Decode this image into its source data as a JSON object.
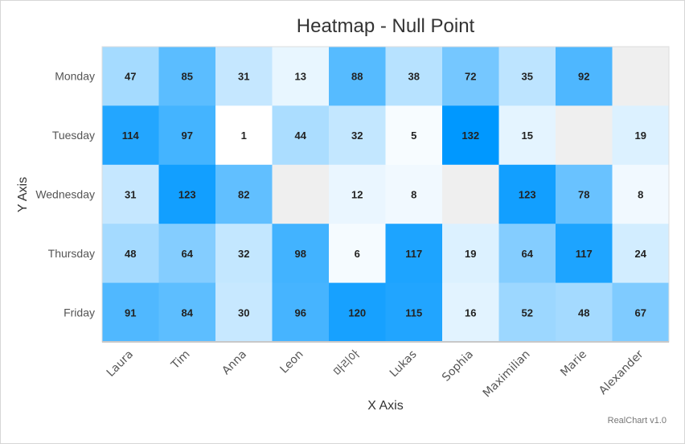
{
  "credits": "RealChart v1.0",
  "chart_data": {
    "type": "heatmap",
    "title": "Heatmap - Null Point",
    "xlabel": "X Axis",
    "ylabel": "Y Axis",
    "x_categories": [
      "Laura",
      "Tim",
      "Anna",
      "Leon",
      "마리아",
      "Lukas",
      "Sophia",
      "Maximilian",
      "Marie",
      "Alexander"
    ],
    "y_categories": [
      "Monday",
      "Tuesday",
      "Wednesday",
      "Thursday",
      "Friday"
    ],
    "values": [
      [
        47,
        85,
        31,
        13,
        88,
        38,
        72,
        35,
        92,
        null
      ],
      [
        114,
        97,
        1,
        44,
        32,
        5,
        132,
        15,
        null,
        19
      ],
      [
        31,
        123,
        82,
        null,
        12,
        8,
        null,
        123,
        78,
        8
      ],
      [
        48,
        64,
        32,
        98,
        6,
        117,
        19,
        64,
        117,
        24
      ],
      [
        91,
        84,
        30,
        96,
        120,
        115,
        16,
        52,
        48,
        67
      ]
    ],
    "color_min": "#ffffff",
    "color_max": "#0098ff",
    "null_color": "#efefef",
    "grid": false,
    "legend": "none"
  }
}
